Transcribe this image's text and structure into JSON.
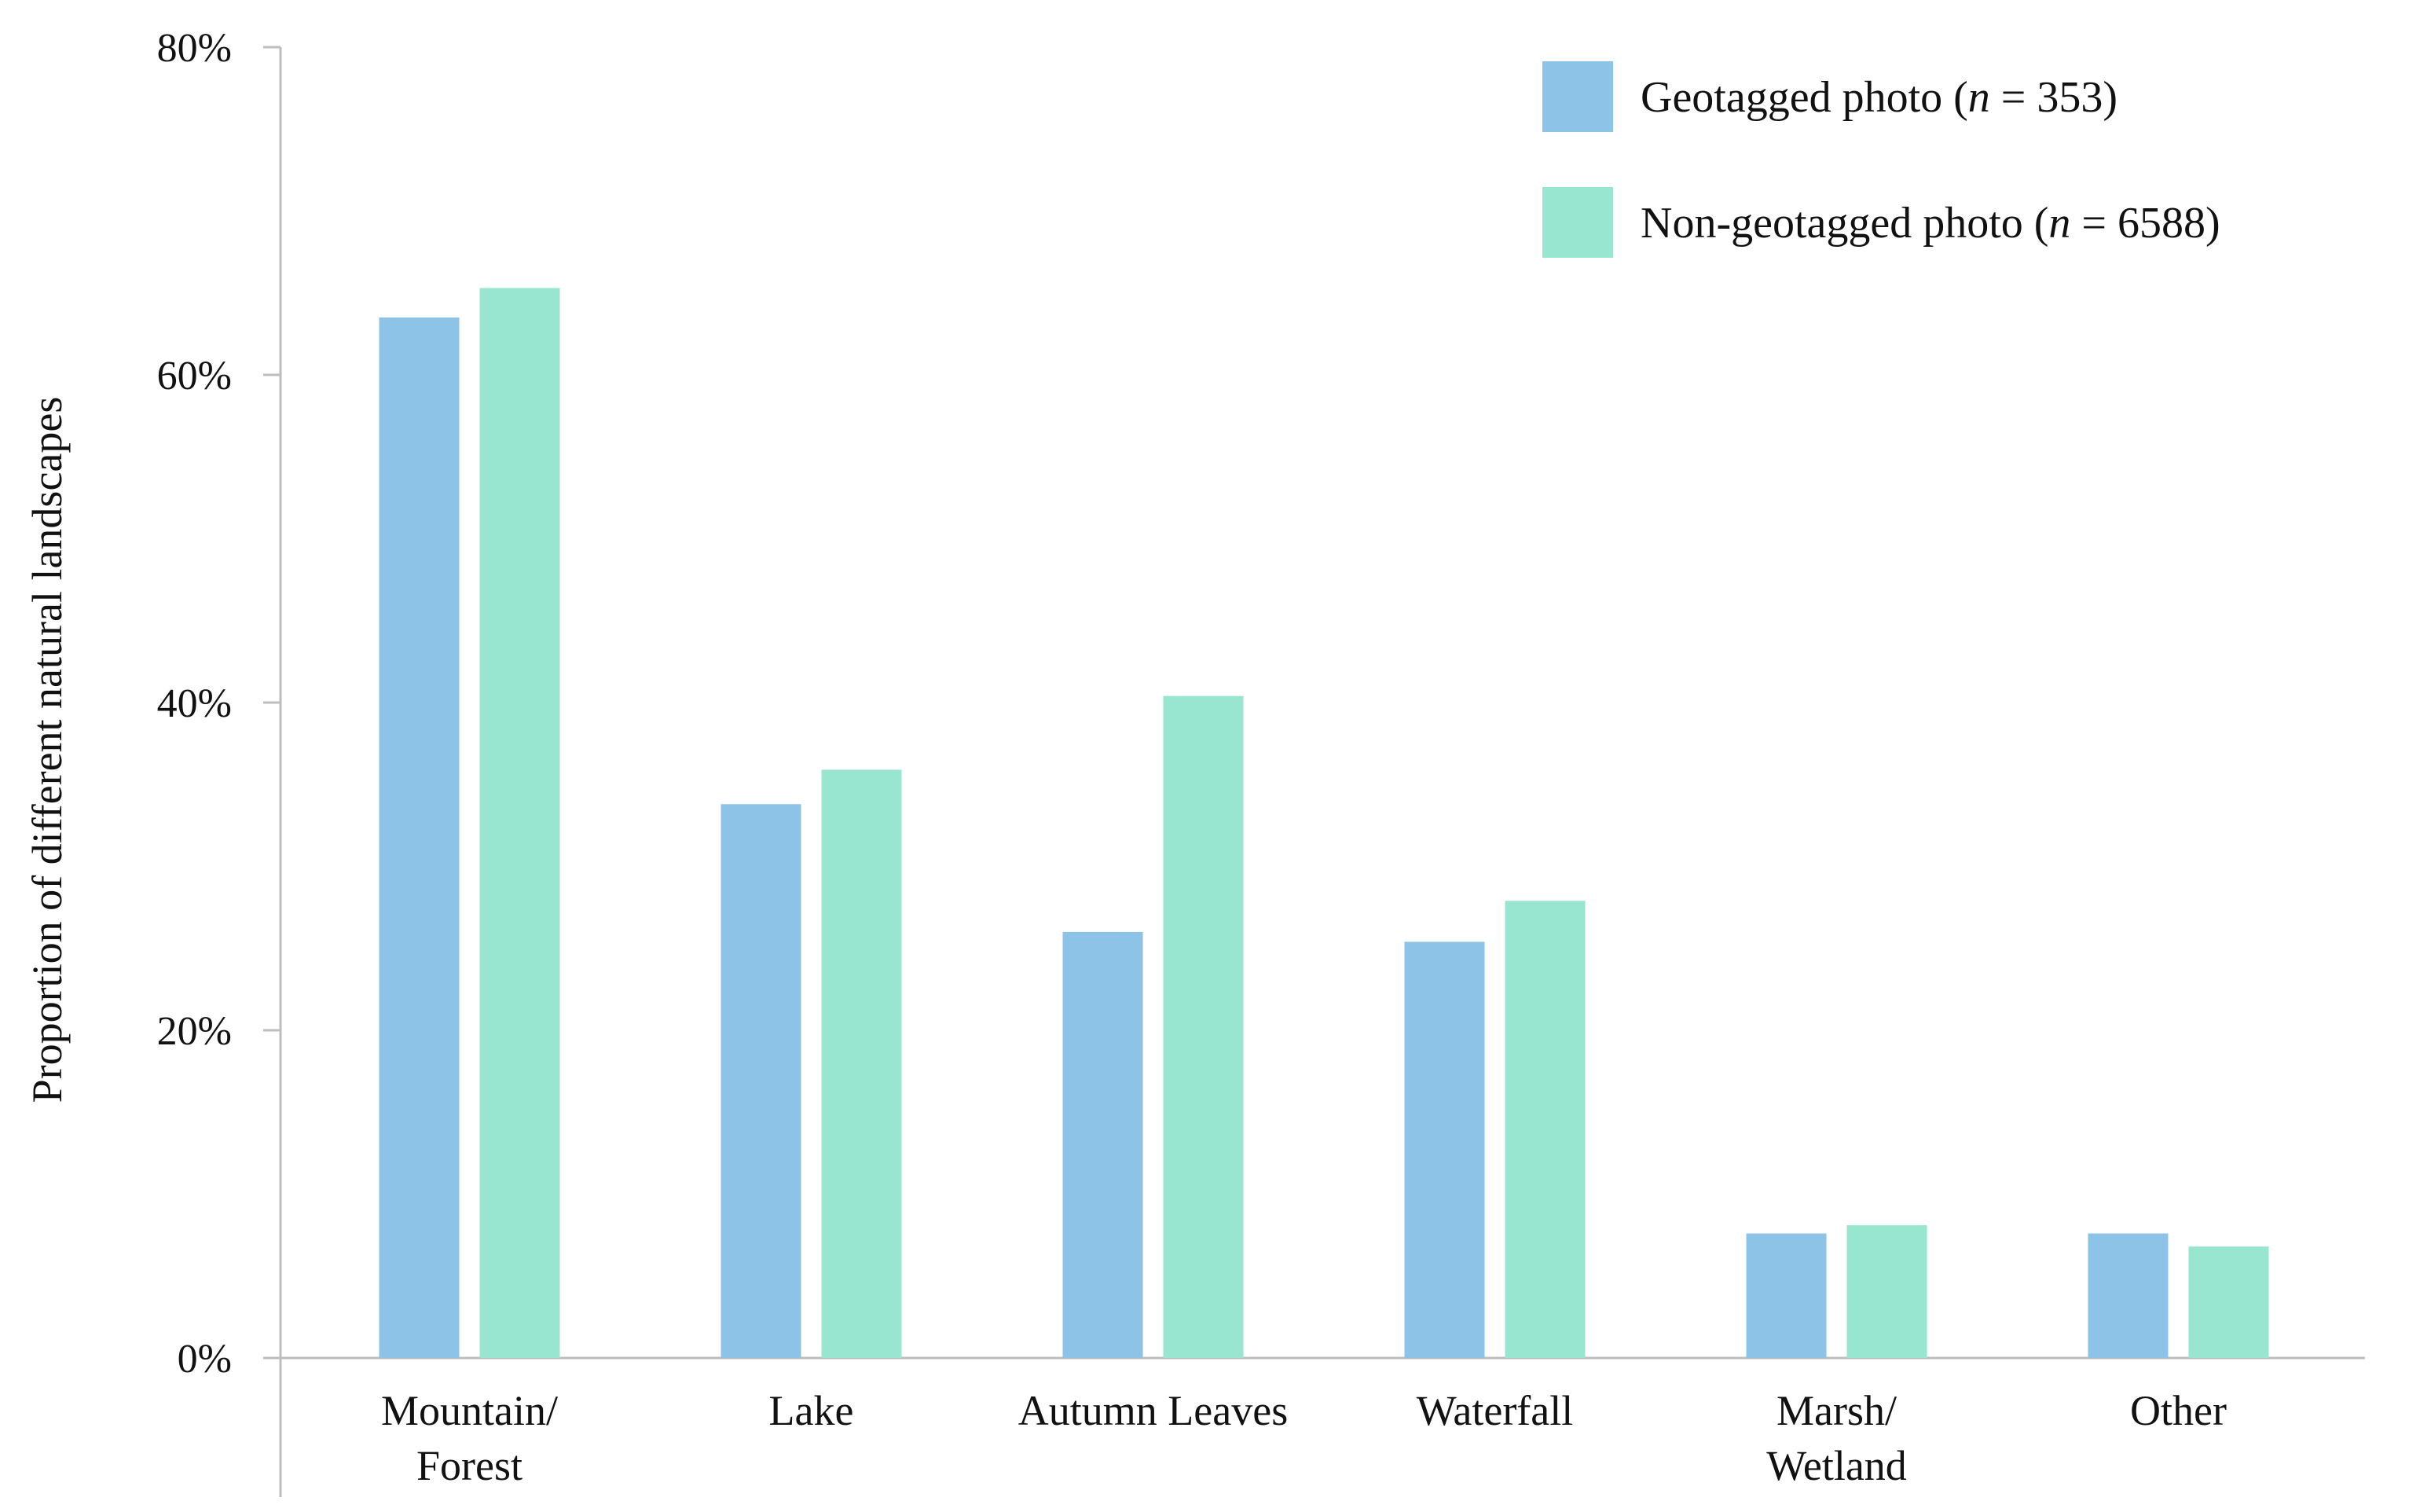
{
  "chart_data": {
    "type": "bar",
    "title": "",
    "xlabel": "",
    "ylabel": "Proportion of different natural landscapes",
    "ylim": [
      0,
      80
    ],
    "yticks": [
      "0%",
      "20%",
      "40%",
      "60%",
      "80%"
    ],
    "ytick_values": [
      0,
      20,
      40,
      60,
      80
    ],
    "grid": false,
    "legend_position": "top-right",
    "categories": [
      [
        "Mountain/",
        "Forest"
      ],
      [
        "Lake"
      ],
      [
        "Autumn Leaves"
      ],
      [
        "Waterfall"
      ],
      [
        "Marsh/",
        "Wetland"
      ],
      [
        "Other"
      ]
    ],
    "series": [
      {
        "name": "Geotagged photo (n = 353)",
        "legend": {
          "prefix": "Geotagged photo (",
          "italic": "n",
          "suffix": " = 353)"
        },
        "color": "#8ec3e8",
        "values": [
          63.5,
          33.8,
          26.0,
          25.4,
          7.6,
          7.6
        ]
      },
      {
        "name": "Non-geotagged photo (n = 6588)",
        "legend": {
          "prefix": "Non-geotagged photo (",
          "italic": "n",
          "suffix": " = 6588)"
        },
        "color": "#98e6cf",
        "values": [
          65.3,
          35.9,
          40.4,
          27.9,
          8.1,
          6.8
        ]
      }
    ]
  }
}
